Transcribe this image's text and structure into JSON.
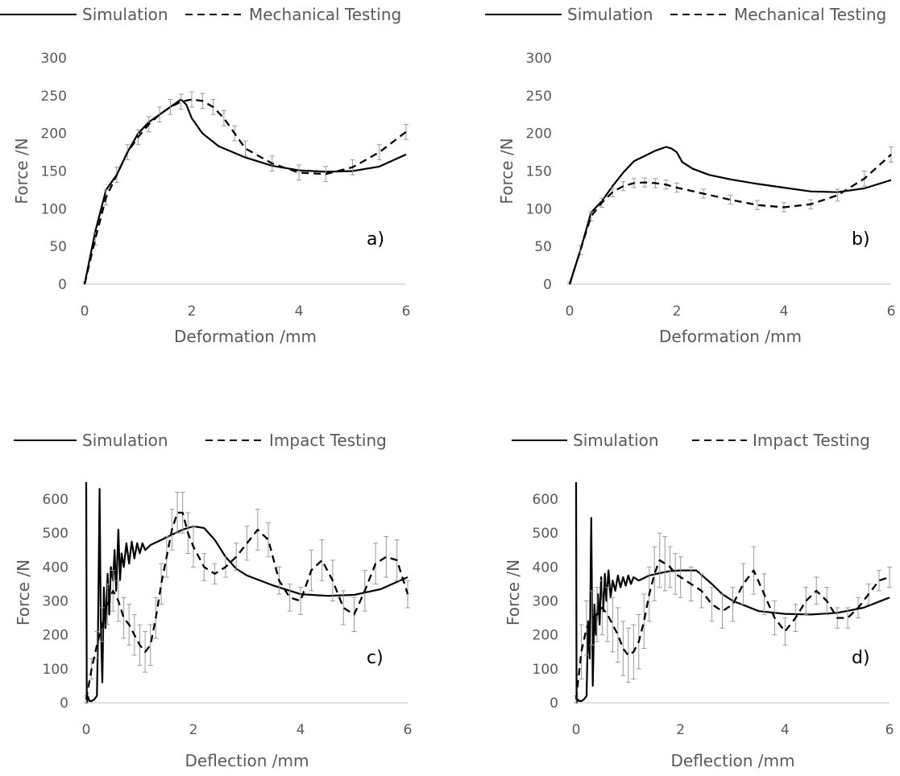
{
  "chart_data": [
    {
      "type": "line",
      "panel_label": "a)",
      "xlabel": "Deformation /mm",
      "ylabel": "Force /N",
      "xlim": [
        0,
        6
      ],
      "ylim": [
        0,
        300
      ],
      "xticks": [
        0,
        2,
        4,
        6
      ],
      "yticks": [
        0,
        50,
        100,
        150,
        200,
        250,
        300
      ],
      "legend": "top",
      "series": [
        {
          "name": "Simulation",
          "style": "solid",
          "x": [
            0,
            0.2,
            0.4,
            0.6,
            0.8,
            1.0,
            1.2,
            1.4,
            1.6,
            1.8,
            1.9,
            2.0,
            2.2,
            2.5,
            3.0,
            3.5,
            4.0,
            4.5,
            5.0,
            5.5,
            6.0
          ],
          "y": [
            0,
            70,
            125,
            145,
            175,
            200,
            215,
            225,
            235,
            245,
            238,
            220,
            200,
            183,
            168,
            157,
            151,
            149,
            150,
            156,
            172
          ]
        },
        {
          "name": "Mechanical Testing",
          "style": "dashed",
          "x": [
            0,
            0.2,
            0.4,
            0.6,
            0.8,
            1.0,
            1.2,
            1.4,
            1.6,
            1.8,
            2.0,
            2.2,
            2.4,
            2.6,
            2.8,
            3.0,
            3.5,
            4.0,
            4.5,
            5.0,
            5.5,
            6.0
          ],
          "y": [
            0,
            60,
            115,
            145,
            175,
            195,
            212,
            225,
            235,
            242,
            245,
            243,
            235,
            220,
            200,
            180,
            160,
            148,
            146,
            155,
            175,
            202
          ],
          "error": [
            3,
            8,
            10,
            10,
            10,
            10,
            10,
            10,
            10,
            10,
            10,
            10,
            10,
            10,
            10,
            10,
            10,
            10,
            10,
            10,
            10,
            10
          ]
        }
      ]
    },
    {
      "type": "line",
      "panel_label": "b)",
      "xlabel": "Deformation /mm",
      "ylabel": "Force /N",
      "xlim": [
        0,
        6
      ],
      "ylim": [
        0,
        300
      ],
      "xticks": [
        0,
        2,
        4,
        6
      ],
      "yticks": [
        0,
        50,
        100,
        150,
        200,
        250,
        300
      ],
      "legend": "top",
      "series": [
        {
          "name": "Simulation",
          "style": "solid",
          "x": [
            0,
            0.2,
            0.4,
            0.6,
            0.8,
            1.0,
            1.2,
            1.4,
            1.6,
            1.8,
            1.9,
            2.0,
            2.1,
            2.3,
            2.6,
            3.0,
            3.5,
            4.0,
            4.5,
            5.0,
            5.5,
            6.0
          ],
          "y": [
            0,
            45,
            95,
            110,
            130,
            148,
            163,
            170,
            177,
            182,
            180,
            175,
            162,
            153,
            145,
            139,
            133,
            128,
            123,
            122,
            127,
            138
          ]
        },
        {
          "name": "Mechanical Testing",
          "style": "dashed",
          "x": [
            0,
            0.2,
            0.4,
            0.6,
            0.8,
            1.0,
            1.2,
            1.4,
            1.6,
            1.8,
            2.0,
            2.5,
            3.0,
            3.5,
            4.0,
            4.5,
            5.0,
            5.5,
            6.0
          ],
          "y": [
            0,
            45,
            90,
            108,
            122,
            130,
            134,
            135,
            134,
            132,
            128,
            120,
            112,
            105,
            102,
            106,
            118,
            140,
            172
          ],
          "error": [
            3,
            6,
            6,
            6,
            6,
            6,
            6,
            6,
            6,
            6,
            6,
            6,
            6,
            6,
            6,
            6,
            8,
            10,
            10
          ]
        }
      ]
    },
    {
      "type": "line",
      "panel_label": "c)",
      "xlabel": "Deflection /mm",
      "ylabel": "Force /N",
      "xlim": [
        0,
        6
      ],
      "ylim": [
        0,
        650
      ],
      "xticks": [
        0,
        2,
        4,
        6
      ],
      "yticks": [
        0,
        100,
        200,
        300,
        400,
        500,
        600
      ],
      "legend": "top",
      "series": [
        {
          "name": "Simulation",
          "style": "solid",
          "x": [
            0,
            0.01,
            0.03,
            0.06,
            0.1,
            0.15,
            0.2,
            0.22,
            0.25,
            0.27,
            0.3,
            0.33,
            0.36,
            0.4,
            0.43,
            0.46,
            0.5,
            0.53,
            0.56,
            0.6,
            0.63,
            0.66,
            0.7,
            0.75,
            0.8,
            0.85,
            0.9,
            0.95,
            1.0,
            1.05,
            1.1,
            1.2,
            1.4,
            1.6,
            1.8,
            2.0,
            2.2,
            2.4,
            2.6,
            2.8,
            3.0,
            3.5,
            4.0,
            4.5,
            5.0,
            5.5,
            6.0
          ],
          "y": [
            650,
            0,
            20,
            5,
            5,
            10,
            20,
            200,
            630,
            250,
            60,
            340,
            220,
            380,
            260,
            400,
            360,
            450,
            330,
            510,
            360,
            440,
            400,
            470,
            410,
            475,
            425,
            470,
            440,
            470,
            450,
            465,
            480,
            495,
            510,
            520,
            515,
            480,
            430,
            395,
            375,
            345,
            320,
            315,
            318,
            335,
            370
          ]
        },
        {
          "name": "Impact Testing",
          "style": "dashed",
          "x": [
            0,
            0.1,
            0.2,
            0.3,
            0.4,
            0.5,
            0.6,
            0.7,
            0.8,
            0.9,
            1.0,
            1.1,
            1.2,
            1.3,
            1.4,
            1.5,
            1.6,
            1.7,
            1.8,
            1.9,
            2.0,
            2.2,
            2.4,
            2.6,
            2.8,
            3.0,
            3.2,
            3.4,
            3.6,
            3.8,
            4.0,
            4.2,
            4.4,
            4.6,
            4.8,
            5.0,
            5.2,
            5.4,
            5.6,
            5.8,
            6.0
          ],
          "y": [
            10,
            100,
            170,
            230,
            290,
            330,
            300,
            250,
            230,
            200,
            170,
            150,
            170,
            250,
            350,
            430,
            510,
            560,
            560,
            500,
            460,
            400,
            380,
            400,
            430,
            470,
            510,
            480,
            360,
            310,
            300,
            390,
            420,
            360,
            280,
            260,
            330,
            410,
            430,
            420,
            320
          ],
          "error": [
            10,
            30,
            40,
            50,
            60,
            60,
            60,
            60,
            60,
            60,
            60,
            60,
            60,
            60,
            60,
            60,
            60,
            60,
            60,
            60,
            60,
            40,
            30,
            30,
            40,
            50,
            60,
            50,
            40,
            40,
            40,
            60,
            60,
            60,
            50,
            50,
            60,
            60,
            60,
            60,
            40
          ]
        }
      ]
    },
    {
      "type": "line",
      "panel_label": "d)",
      "xlabel": "Deflection /mm",
      "ylabel": "Force /N",
      "xlim": [
        0,
        6
      ],
      "ylim": [
        0,
        650
      ],
      "xticks": [
        0,
        2,
        4,
        6
      ],
      "yticks": [
        0,
        100,
        200,
        300,
        400,
        500,
        600
      ],
      "legend": "top",
      "series": [
        {
          "name": "Simulation",
          "style": "solid",
          "x": [
            0,
            0.01,
            0.03,
            0.06,
            0.1,
            0.15,
            0.2,
            0.23,
            0.26,
            0.29,
            0.32,
            0.35,
            0.38,
            0.42,
            0.45,
            0.48,
            0.52,
            0.55,
            0.58,
            0.62,
            0.66,
            0.7,
            0.75,
            0.8,
            0.85,
            0.9,
            0.95,
            1.0,
            1.05,
            1.1,
            1.2,
            1.4,
            1.6,
            1.8,
            2.0,
            2.3,
            2.6,
            2.8,
            3.0,
            3.5,
            4.0,
            4.5,
            5.0,
            5.5,
            6.0
          ],
          "y": [
            650,
            0,
            10,
            5,
            5,
            10,
            20,
            240,
            130,
            545,
            50,
            290,
            200,
            320,
            230,
            370,
            270,
            380,
            300,
            390,
            310,
            360,
            330,
            375,
            340,
            370,
            345,
            375,
            350,
            370,
            360,
            375,
            382,
            388,
            390,
            390,
            350,
            320,
            300,
            270,
            262,
            260,
            265,
            280,
            310
          ]
        },
        {
          "name": "Impact Testing",
          "style": "dashed",
          "x": [
            0,
            0.1,
            0.2,
            0.3,
            0.4,
            0.5,
            0.6,
            0.7,
            0.8,
            0.9,
            1.0,
            1.1,
            1.2,
            1.3,
            1.4,
            1.5,
            1.6,
            1.7,
            1.8,
            1.9,
            2.0,
            2.2,
            2.4,
            2.6,
            2.8,
            3.0,
            3.2,
            3.4,
            3.6,
            3.8,
            4.0,
            4.2,
            4.4,
            4.6,
            4.8,
            5.0,
            5.2,
            5.4,
            5.6,
            5.8,
            6.0
          ],
          "y": [
            10,
            150,
            220,
            250,
            260,
            280,
            260,
            230,
            200,
            160,
            140,
            150,
            180,
            240,
            320,
            380,
            420,
            410,
            400,
            380,
            370,
            350,
            330,
            290,
            270,
            290,
            350,
            390,
            320,
            250,
            210,
            250,
            300,
            330,
            300,
            250,
            250,
            280,
            320,
            360,
            370
          ],
          "error": [
            10,
            80,
            80,
            80,
            80,
            80,
            80,
            80,
            80,
            80,
            80,
            80,
            80,
            80,
            80,
            80,
            80,
            80,
            60,
            60,
            60,
            50,
            50,
            50,
            50,
            50,
            60,
            70,
            60,
            50,
            40,
            40,
            40,
            40,
            40,
            30,
            30,
            30,
            30,
            30,
            30
          ]
        }
      ]
    }
  ]
}
